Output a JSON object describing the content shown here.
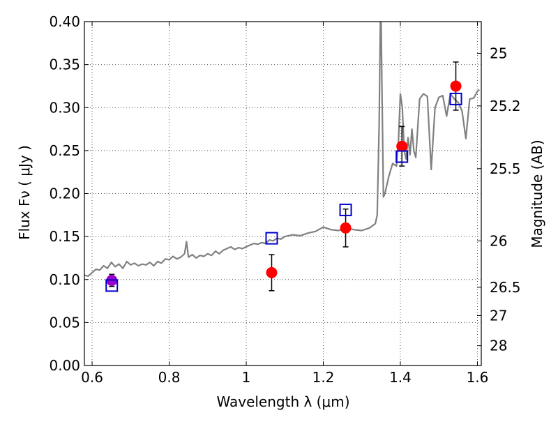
{
  "chart_data": {
    "type": "scatter",
    "xlabel": "Wavelength  λ (μm)",
    "ylabel": "Flux  Fν  ( μJy )",
    "ylabel_right": "Magnitude (AB)",
    "xlim": [
      0.58,
      1.61
    ],
    "ylim": [
      0.0,
      0.4
    ],
    "grid": true,
    "x_ticks": [
      {
        "value": 0.6,
        "label": "0.6"
      },
      {
        "value": 0.8,
        "label": "0.8"
      },
      {
        "value": 1.0,
        "label": "1"
      },
      {
        "value": 1.2,
        "label": "1.2"
      },
      {
        "value": 1.4,
        "label": "1.4"
      },
      {
        "value": 1.6,
        "label": "1.6"
      }
    ],
    "y_ticks": [
      {
        "value": 0.0,
        "label": "0.00"
      },
      {
        "value": 0.05,
        "label": "0.05"
      },
      {
        "value": 0.1,
        "label": "0.10"
      },
      {
        "value": 0.15,
        "label": "0.15"
      },
      {
        "value": 0.2,
        "label": "0.20"
      },
      {
        "value": 0.25,
        "label": "0.25"
      },
      {
        "value": 0.3,
        "label": "0.30"
      },
      {
        "value": 0.35,
        "label": "0.35"
      },
      {
        "value": 0.4,
        "label": "0.40"
      }
    ],
    "right_ticks": [
      {
        "label": "25",
        "flux": 0.363
      },
      {
        "label": "25.2",
        "flux": 0.302
      },
      {
        "label": "25.5",
        "flux": 0.229
      },
      {
        "label": "26",
        "flux": 0.145
      },
      {
        "label": "26.5",
        "flux": 0.091
      },
      {
        "label": "27",
        "flux": 0.058
      },
      {
        "label": "28",
        "flux": 0.023
      }
    ],
    "colors": {
      "model": "#808080",
      "observed": "#ff0000",
      "observed_first": "#9900cc",
      "model_boxes": "#0000cc",
      "errorbar": "#000000",
      "grid": "#555555"
    },
    "series": [
      {
        "kind": "model_spectrum",
        "x": [
          0.58,
          0.59,
          0.6,
          0.61,
          0.62,
          0.63,
          0.64,
          0.65,
          0.66,
          0.67,
          0.68,
          0.69,
          0.7,
          0.71,
          0.72,
          0.73,
          0.74,
          0.75,
          0.76,
          0.77,
          0.78,
          0.79,
          0.8,
          0.81,
          0.82,
          0.83,
          0.84,
          0.845,
          0.85,
          0.86,
          0.87,
          0.88,
          0.89,
          0.9,
          0.91,
          0.92,
          0.93,
          0.94,
          0.95,
          0.96,
          0.97,
          0.98,
          0.99,
          1.0,
          1.01,
          1.02,
          1.03,
          1.04,
          1.05,
          1.06,
          1.07,
          1.08,
          1.09,
          1.1,
          1.12,
          1.14,
          1.16,
          1.18,
          1.2,
          1.22,
          1.24,
          1.26,
          1.28,
          1.3,
          1.32,
          1.335,
          1.34,
          1.345,
          1.348,
          1.35,
          1.352,
          1.356,
          1.36,
          1.37,
          1.38,
          1.39,
          1.395,
          1.4,
          1.405,
          1.41,
          1.415,
          1.42,
          1.425,
          1.43,
          1.435,
          1.44,
          1.45,
          1.46,
          1.47,
          1.48,
          1.49,
          1.5,
          1.51,
          1.52,
          1.53,
          1.54,
          1.55,
          1.56,
          1.57,
          1.58,
          1.59,
          1.6,
          1.605
        ],
        "y": [
          0.105,
          0.104,
          0.108,
          0.112,
          0.111,
          0.116,
          0.113,
          0.12,
          0.115,
          0.118,
          0.113,
          0.121,
          0.117,
          0.119,
          0.116,
          0.118,
          0.117,
          0.12,
          0.116,
          0.121,
          0.119,
          0.124,
          0.123,
          0.127,
          0.124,
          0.126,
          0.13,
          0.144,
          0.126,
          0.129,
          0.125,
          0.128,
          0.127,
          0.13,
          0.128,
          0.133,
          0.13,
          0.134,
          0.136,
          0.138,
          0.135,
          0.137,
          0.136,
          0.138,
          0.14,
          0.142,
          0.141,
          0.143,
          0.142,
          0.146,
          0.145,
          0.148,
          0.147,
          0.15,
          0.152,
          0.151,
          0.154,
          0.156,
          0.161,
          0.158,
          0.157,
          0.16,
          0.158,
          0.157,
          0.16,
          0.165,
          0.175,
          0.28,
          0.4,
          0.4,
          0.33,
          0.196,
          0.2,
          0.22,
          0.235,
          0.232,
          0.26,
          0.316,
          0.3,
          0.25,
          0.24,
          0.265,
          0.245,
          0.275,
          0.25,
          0.242,
          0.31,
          0.316,
          0.313,
          0.228,
          0.3,
          0.312,
          0.314,
          0.29,
          0.316,
          0.31,
          0.306,
          0.296,
          0.264,
          0.31,
          0.311,
          0.319,
          0.321
        ]
      },
      {
        "kind": "observed",
        "x": [
          0.651,
          1.066,
          1.258,
          1.404,
          1.544
        ],
        "y": [
          0.099,
          0.108,
          0.16,
          0.255,
          0.325
        ],
        "yerr": [
          0.007,
          0.021,
          0.022,
          0.023,
          0.028
        ]
      },
      {
        "kind": "model_boxes",
        "x": [
          0.651,
          1.066,
          1.258,
          1.404,
          1.544
        ],
        "y": [
          0.093,
          0.148,
          0.181,
          0.243,
          0.31
        ]
      }
    ]
  }
}
